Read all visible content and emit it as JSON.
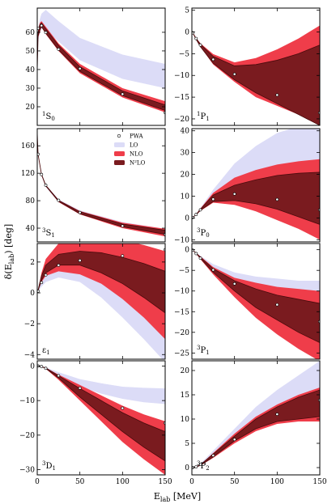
{
  "figure": {
    "ylabel_main": "δ(E",
    "ylabel_sub": "lab",
    "ylabel_tail": ") [deg]",
    "xlabel_main": "E",
    "xlabel_sub": "lab",
    "xlabel_tail": " [MeV]"
  },
  "colors": {
    "lo": "#dcdcf7",
    "nlo": "#ef3d4a",
    "n2lo": "#7a1b1f",
    "edge": "#4a0a0c"
  },
  "legend": {
    "entries": [
      {
        "label": "PWA",
        "kind": "marker"
      },
      {
        "label": "LO",
        "kind": "lo"
      },
      {
        "label": "NLO",
        "kind": "nlo"
      },
      {
        "label": "N²LO",
        "kind": "n2lo"
      }
    ]
  },
  "chart_data": [
    {
      "type": "area",
      "id": "1S0",
      "col": 0,
      "row": 0,
      "label_sup": "1",
      "label_main": "S",
      "label_sub": "0",
      "xlim": [
        0,
        150
      ],
      "ylim": [
        10,
        73
      ],
      "xticks": [
        0,
        50,
        100,
        150
      ],
      "yticks": [
        20,
        30,
        40,
        50,
        60
      ],
      "xticklabels": false,
      "x": [
        0,
        1,
        3,
        5,
        10,
        25,
        50,
        100,
        150
      ],
      "lo": {
        "lo": [
          40,
          55,
          60,
          62,
          61,
          55,
          45,
          35,
          30
        ],
        "hi": [
          40,
          60,
          67,
          70,
          72,
          66,
          57,
          48,
          43
        ]
      },
      "nlo": {
        "lo": [
          38,
          57,
          60,
          63,
          59,
          50,
          38,
          25,
          17
        ],
        "hi": [
          42,
          61,
          65,
          66,
          63,
          54,
          43,
          30,
          23
        ]
      },
      "n2lo": {
        "lo": [
          39,
          58,
          61,
          63,
          59.5,
          50.5,
          39,
          26,
          18
        ],
        "hi": [
          41,
          60,
          64,
          65,
          62,
          53,
          41.5,
          28.5,
          21
        ]
      },
      "pwa": {
        "x": [
          1,
          5,
          10,
          25,
          50,
          100,
          150
        ],
        "y": [
          62.1,
          63.6,
          59.9,
          50.9,
          40.5,
          26.8,
          16.9
        ]
      }
    },
    {
      "type": "area",
      "id": "1P1",
      "col": 1,
      "row": 0,
      "label_sup": "1",
      "label_main": "P",
      "label_sub": "1",
      "xlim": [
        0,
        150
      ],
      "ylim": [
        -21.5,
        5.5
      ],
      "xticks": [
        0,
        50,
        100,
        150
      ],
      "yticks": [
        -20,
        -15,
        -10,
        -5,
        0,
        5
      ],
      "xticklabels": false,
      "x": [
        0,
        1,
        5,
        10,
        25,
        50,
        75,
        100,
        125,
        150
      ],
      "lo": {
        "lo": [
          0,
          -0.2,
          -1.8,
          -3.4,
          -6.9,
          -10.2,
          -11.5,
          -12,
          -11.8,
          -11.5
        ],
        "hi": [
          0,
          -0.15,
          -1.3,
          -2.6,
          -5.4,
          -8.3,
          -9.5,
          -9.9,
          -9.8,
          -9.5
        ]
      },
      "nlo": {
        "lo": [
          0,
          -0.2,
          -1.7,
          -3.4,
          -7.5,
          -11.5,
          -15,
          -17,
          -19,
          -21.5
        ],
        "hi": [
          0,
          -0.1,
          -1.4,
          -2.6,
          -5.1,
          -7,
          -6,
          -4,
          -1.5,
          1.5
        ]
      },
      "n2lo": {
        "lo": [
          0,
          -0.2,
          -1.7,
          -3.4,
          -7.2,
          -11,
          -14,
          -16.5,
          -19,
          -21.5
        ],
        "hi": [
          0,
          -0.15,
          -1.5,
          -2.8,
          -5.6,
          -7.8,
          -7.5,
          -6.5,
          -5,
          -3
        ]
      },
      "pwa": {
        "x": [
          1,
          5,
          10,
          25,
          50,
          100,
          150
        ],
        "y": [
          -0.19,
          -1.5,
          -3.0,
          -6.3,
          -9.7,
          -14.5,
          -18.6
        ]
      }
    },
    {
      "type": "area",
      "id": "3S1",
      "col": 0,
      "row": 1,
      "label_sup": "3",
      "label_main": "S",
      "label_sub": "1",
      "xlim": [
        0,
        150
      ],
      "ylim": [
        20,
        185
      ],
      "xticks": [
        0,
        50,
        100,
        150
      ],
      "yticks": [
        40,
        80,
        120,
        160
      ],
      "xticklabels": false,
      "x": [
        0,
        1,
        5,
        10,
        25,
        50,
        100,
        150
      ],
      "lo": {
        "lo": [
          180,
          147,
          117,
          100,
          78,
          60,
          41,
          29
        ],
        "hi": [
          180,
          148,
          119,
          103,
          82,
          66,
          49,
          39
        ]
      },
      "nlo": {
        "lo": [
          180,
          147,
          117,
          101,
          78,
          60,
          40,
          28
        ],
        "hi": [
          180,
          148,
          119,
          103,
          81,
          65,
          48,
          39
        ]
      },
      "n2lo": {
        "lo": [
          180,
          147,
          118,
          101.5,
          79,
          61,
          42,
          31
        ],
        "hi": [
          180,
          147.5,
          118.5,
          102.5,
          80.5,
          64,
          46,
          37
        ]
      },
      "pwa": {
        "x": [
          1,
          5,
          10,
          25,
          50,
          100,
          150
        ],
        "y": [
          147.7,
          118.2,
          102.6,
          80.6,
          62.8,
          43.2,
          30.7
        ]
      }
    },
    {
      "type": "area",
      "id": "3P0",
      "col": 1,
      "row": 1,
      "label_sup": "3",
      "label_main": "P",
      "label_sub": "0",
      "xlim": [
        0,
        150
      ],
      "ylim": [
        -11,
        41
      ],
      "xticks": [
        0,
        50,
        100,
        150
      ],
      "yticks": [
        -10,
        0,
        10,
        20,
        30,
        40
      ],
      "xticklabels": false,
      "x": [
        0,
        1,
        5,
        10,
        25,
        50,
        75,
        100,
        125,
        150
      ],
      "lo": {
        "lo": [
          0,
          0.2,
          1.5,
          3.5,
          9,
          14,
          17,
          19,
          20,
          21
        ],
        "hi": [
          0,
          0.2,
          1.8,
          4.5,
          13,
          25,
          33,
          39,
          42,
          45
        ]
      },
      "nlo": {
        "lo": [
          0,
          0.1,
          1.4,
          3.2,
          7,
          6,
          3,
          -1,
          -5,
          -10
        ],
        "hi": [
          0,
          0.2,
          1.7,
          4.3,
          11.5,
          18.5,
          22,
          24.5,
          26,
          27
        ]
      },
      "n2lo": {
        "lo": [
          0,
          0.15,
          1.5,
          3.5,
          7.5,
          8,
          6.5,
          4,
          0.5,
          -3
        ],
        "hi": [
          0,
          0.2,
          1.6,
          4.0,
          10.5,
          15,
          17.5,
          19.5,
          20.5,
          21
        ]
      },
      "pwa": {
        "x": [
          1,
          5,
          10,
          25,
          50,
          100,
          150
        ],
        "y": [
          0.18,
          1.6,
          3.7,
          8.6,
          11.0,
          8.5,
          3.7
        ]
      }
    },
    {
      "type": "area",
      "id": "e1",
      "col": 0,
      "row": 2,
      "label_sup": "",
      "label_main": "ε",
      "label_sub": "1",
      "xlim": [
        0,
        150
      ],
      "ylim": [
        -4.3,
        3.2
      ],
      "xticks": [
        0,
        50,
        100,
        150
      ],
      "yticks": [
        -4,
        -2,
        0,
        2
      ],
      "xticklabels": false,
      "x": [
        0,
        1,
        5,
        10,
        25,
        50,
        75,
        100,
        125,
        150
      ],
      "lo": {
        "lo": [
          0,
          0.1,
          0.4,
          0.7,
          1.0,
          0.7,
          -0.3,
          -1.6,
          -3.0,
          -4.5
        ],
        "hi": [
          0,
          0.15,
          0.8,
          1.3,
          1.8,
          1.9,
          1.6,
          1.1,
          0.5,
          -0.2
        ]
      },
      "nlo": {
        "lo": [
          0,
          0.15,
          0.7,
          1.1,
          1.4,
          1.2,
          0.6,
          -0.4,
          -1.6,
          -3.0
        ],
        "hi": [
          0,
          0.2,
          1.3,
          2.2,
          3.2,
          3.6,
          3.6,
          3.4,
          3.1,
          2.7
        ]
      },
      "n2lo": {
        "lo": [
          0,
          0.15,
          0.8,
          1.3,
          1.8,
          1.8,
          1.3,
          0.6,
          -0.3,
          -1.3
        ],
        "hi": [
          0,
          0.2,
          1.1,
          1.8,
          2.5,
          2.7,
          2.6,
          2.3,
          1.9,
          1.4
        ]
      },
      "pwa": {
        "x": [
          1,
          5,
          10,
          25,
          50,
          100,
          150
        ],
        "y": [
          0.11,
          0.67,
          1.16,
          1.79,
          2.1,
          2.4,
          2.8
        ]
      }
    },
    {
      "type": "area",
      "id": "3P1",
      "col": 1,
      "row": 2,
      "label_sup": "3",
      "label_main": "P",
      "label_sub": "1",
      "xlim": [
        0,
        150
      ],
      "ylim": [
        -26.5,
        1.5
      ],
      "xticks": [
        0,
        50,
        100,
        150
      ],
      "yticks": [
        -25,
        -20,
        -15,
        -10,
        -5,
        0
      ],
      "xticklabels": false,
      "x": [
        0,
        1,
        5,
        10,
        25,
        50,
        75,
        100,
        125,
        150
      ],
      "lo": {
        "lo": [
          0,
          -0.1,
          -0.9,
          -2,
          -5,
          -9,
          -12,
          -14.5,
          -16.5,
          -18
        ],
        "hi": [
          0,
          -0.1,
          -0.7,
          -1.5,
          -3.5,
          -5.5,
          -6.5,
          -7,
          -7.5,
          -7.5
        ]
      },
      "nlo": {
        "lo": [
          0,
          -0.1,
          -1,
          -2.3,
          -6,
          -11.5,
          -16.5,
          -20.5,
          -24,
          -27
        ],
        "hi": [
          0,
          -0.1,
          -0.8,
          -1.6,
          -4.2,
          -6.8,
          -8,
          -9,
          -9.5,
          -10
        ]
      },
      "n2lo": {
        "lo": [
          0,
          -0.1,
          -0.9,
          -2.1,
          -5.5,
          -10,
          -14,
          -17,
          -20,
          -22.5
        ],
        "hi": [
          0,
          -0.1,
          -0.8,
          -1.8,
          -4.6,
          -7.5,
          -9.5,
          -11,
          -12,
          -13
        ]
      },
      "pwa": {
        "x": [
          1,
          5,
          10,
          25,
          50,
          100,
          150
        ],
        "y": [
          -0.11,
          -0.94,
          -2.06,
          -4.88,
          -8.25,
          -13.3,
          -17.4
        ]
      }
    },
    {
      "type": "area",
      "id": "3D1",
      "col": 0,
      "row": 3,
      "label_sup": "3",
      "label_main": "D",
      "label_sub": "1",
      "xlim": [
        0,
        150
      ],
      "ylim": [
        -31.5,
        1.5
      ],
      "xticks": [
        0,
        50,
        100,
        150
      ],
      "yticks": [
        -30,
        -20,
        -10,
        0
      ],
      "xticklabels": true,
      "x": [
        0,
        1,
        5,
        10,
        25,
        50,
        75,
        100,
        125,
        150
      ],
      "lo": {
        "lo": [
          0,
          -0.01,
          -0.2,
          -0.6,
          -2.5,
          -6,
          -8,
          -9.5,
          -10.5,
          -11
        ],
        "hi": [
          0,
          -0.005,
          -0.15,
          -0.4,
          -1.8,
          -3.8,
          -5,
          -6,
          -6.3,
          -6.5
        ]
      },
      "nlo": {
        "lo": [
          0,
          -0.01,
          -0.2,
          -0.8,
          -4,
          -10,
          -16,
          -22,
          -27,
          -31.5
        ],
        "hi": [
          0,
          -0.005,
          -0.15,
          -0.5,
          -2.5,
          -5.5,
          -8.5,
          -11.5,
          -14,
          -16
        ]
      },
      "n2lo": {
        "lo": [
          0,
          -0.01,
          -0.2,
          -0.7,
          -3.5,
          -9,
          -14,
          -19,
          -23.5,
          -27.5
        ],
        "hi": [
          0,
          -0.005,
          -0.16,
          -0.55,
          -2.8,
          -6.5,
          -10,
          -13.5,
          -16.5,
          -19
        ]
      },
      "pwa": {
        "x": [
          1,
          5,
          10,
          25,
          50,
          100,
          150
        ],
        "y": [
          -0.005,
          -0.18,
          -0.67,
          -2.8,
          -6.4,
          -12.2,
          -16.5
        ]
      }
    },
    {
      "type": "area",
      "id": "3P2",
      "col": 1,
      "row": 3,
      "label_sup": "3",
      "label_main": "P",
      "label_sub": "2",
      "xlim": [
        0,
        150
      ],
      "ylim": [
        -1.5,
        22
      ],
      "xticks": [
        0,
        50,
        100,
        150
      ],
      "yticks": [
        0,
        5,
        10,
        15,
        20
      ],
      "xticklabels": true,
      "x": [
        0,
        1,
        5,
        10,
        25,
        50,
        75,
        100,
        125,
        150
      ],
      "lo": {
        "lo": [
          0,
          0.01,
          0.1,
          0.4,
          2,
          5.5,
          8.5,
          11,
          13,
          14.5
        ],
        "hi": [
          0,
          0.02,
          0.3,
          0.8,
          3.5,
          8,
          12.5,
          16,
          19,
          22
        ]
      },
      "nlo": {
        "lo": [
          0,
          0.01,
          0.1,
          0.4,
          2,
          5,
          7.5,
          9,
          9.5,
          9.5
        ],
        "hi": [
          0,
          0.02,
          0.2,
          0.6,
          3,
          7,
          10.5,
          13,
          15,
          16.5
        ]
      },
      "n2lo": {
        "lo": [
          0,
          0.01,
          0.12,
          0.45,
          2.2,
          5.5,
          8,
          9.5,
          10,
          10.5
        ],
        "hi": [
          0,
          0.02,
          0.2,
          0.6,
          2.8,
          6.5,
          10,
          12.5,
          14.5,
          16
        ]
      },
      "pwa": {
        "x": [
          1,
          5,
          10,
          25,
          50,
          100,
          150
        ],
        "y": [
          0.01,
          0.17,
          0.65,
          2.5,
          5.8,
          11.0,
          13.9
        ]
      }
    }
  ]
}
